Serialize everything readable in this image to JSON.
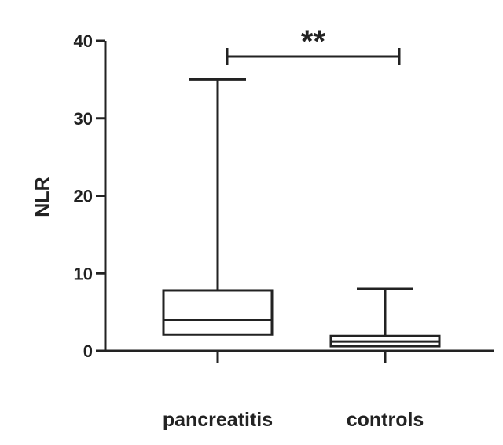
{
  "chart_data": {
    "type": "box",
    "ylabel": "NLR",
    "xlabel": "",
    "ylim": [
      0,
      40
    ],
    "yticks": [
      0,
      10,
      20,
      30,
      40
    ],
    "categories": [
      "pancreatitis",
      "controls"
    ],
    "boxes": [
      {
        "category": "pancreatitis",
        "min": 0,
        "q1": 2.1,
        "median": 4.0,
        "q3": 7.8,
        "max": 35
      },
      {
        "category": "controls",
        "min": 0,
        "q1": 0.6,
        "median": 1.2,
        "q3": 1.9,
        "max": 8
      }
    ],
    "significance": {
      "between": [
        "pancreatitis",
        "controls"
      ],
      "label": "**"
    }
  }
}
